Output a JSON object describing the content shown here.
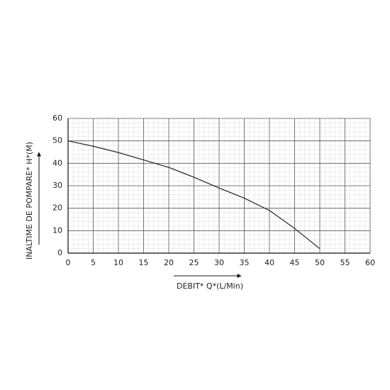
{
  "chart_data": {
    "type": "line",
    "xlabel": "DEBIT* Q*(L/Min)",
    "ylabel": "INALTIME DE POMPARE* H*(M)",
    "x": [
      0,
      5,
      10,
      15,
      20,
      25,
      30,
      35,
      40,
      45,
      50
    ],
    "series": [
      {
        "color": "#222222",
        "values": [
          50,
          47.6,
          44.8,
          41.5,
          38.2,
          33.8,
          29,
          24.5,
          19,
          11,
          2
        ]
      }
    ],
    "xlim": [
      0,
      60
    ],
    "xticks": [
      0,
      5,
      10,
      15,
      20,
      25,
      30,
      35,
      40,
      45,
      50,
      55,
      60
    ],
    "ylim": [
      0,
      60
    ],
    "yticks": [
      0,
      10,
      20,
      30,
      40,
      50,
      60
    ],
    "grid": true,
    "minor_grid": true
  }
}
